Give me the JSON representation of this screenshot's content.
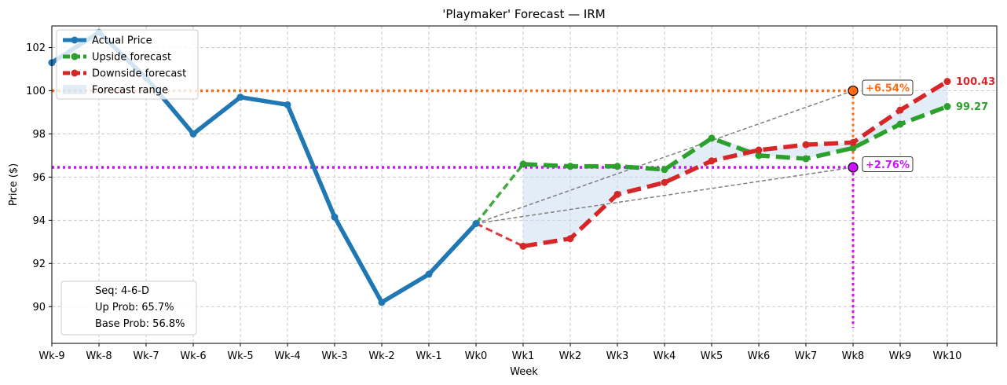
{
  "chart_data": {
    "type": "line",
    "title": "'Playmaker' Forecast — IRM",
    "xlabel": "Week",
    "ylabel": "Price ($)",
    "x_categories": [
      "Wk-9",
      "Wk-8",
      "Wk-7",
      "Wk-6",
      "Wk-5",
      "Wk-4",
      "Wk-3",
      "Wk-2",
      "Wk-1",
      "Wk0",
      "Wk1",
      "Wk2",
      "Wk3",
      "Wk4",
      "Wk5",
      "Wk6",
      "Wk7",
      "Wk8",
      "Wk9",
      "Wk10"
    ],
    "ylim": [
      88.3,
      103
    ],
    "yticks": [
      90,
      92,
      94,
      96,
      98,
      100,
      102
    ],
    "grid": true,
    "legend_position": "top-left",
    "series": [
      {
        "name": "Actual Price",
        "color": "#1f77b4",
        "x": [
          "Wk-9",
          "Wk-8",
          "Wk-7",
          "Wk-6",
          "Wk-5",
          "Wk-4",
          "Wk-3",
          "Wk-2",
          "Wk-1",
          "Wk0"
        ],
        "values": [
          101.3,
          102.7,
          100.6,
          98.0,
          99.7,
          99.35,
          94.15,
          90.2,
          91.5,
          93.85
        ]
      },
      {
        "name": "Upside forecast",
        "color": "#2ca02c",
        "x": [
          "Wk1",
          "Wk2",
          "Wk3",
          "Wk4",
          "Wk5",
          "Wk6",
          "Wk7",
          "Wk8",
          "Wk9",
          "Wk10"
        ],
        "values": [
          96.6,
          96.5,
          96.5,
          96.35,
          97.8,
          97.0,
          96.85,
          97.35,
          98.45,
          99.27
        ]
      },
      {
        "name": "Downside forecast",
        "color": "#d62728",
        "x": [
          "Wk1",
          "Wk2",
          "Wk3",
          "Wk4",
          "Wk5",
          "Wk6",
          "Wk7",
          "Wk8",
          "Wk9",
          "Wk10"
        ],
        "values": [
          92.8,
          93.15,
          95.2,
          95.75,
          96.75,
          97.25,
          97.5,
          97.6,
          99.1,
          100.43
        ]
      },
      {
        "name": "Forecast range",
        "color": "#c6dbef"
      }
    ],
    "reference_lines": [
      {
        "value": 100.0,
        "color": "#ff6a13",
        "label": "+6.54%",
        "x": "Wk8"
      },
      {
        "value": 96.45,
        "color": "#cc11ff",
        "label": "+2.76%",
        "x": "Wk8"
      }
    ],
    "end_labels": [
      {
        "text": "100.43",
        "color": "#d62728",
        "value": 100.43
      },
      {
        "text": "99.27",
        "color": "#2ca02c",
        "value": 99.27
      }
    ],
    "info_box": {
      "lines": [
        "Seq: 4-6-D",
        "Up Prob: 65.7%",
        "Base Prob: 56.8%"
      ]
    }
  }
}
